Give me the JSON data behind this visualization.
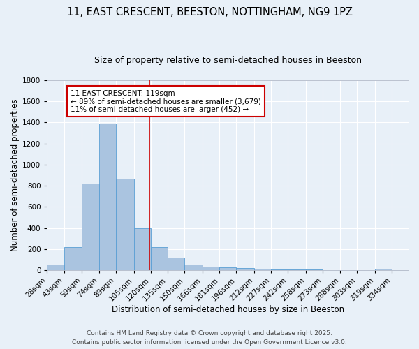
{
  "title_line1": "11, EAST CRESCENT, BEESTON, NOTTINGHAM, NG9 1PZ",
  "title_line2": "Size of property relative to semi-detached houses in Beeston",
  "xlabel": "Distribution of semi-detached houses by size in Beeston",
  "ylabel": "Number of semi-detached properties",
  "bin_labels": [
    "28sqm",
    "43sqm",
    "59sqm",
    "74sqm",
    "89sqm",
    "105sqm",
    "120sqm",
    "135sqm",
    "150sqm",
    "166sqm",
    "181sqm",
    "196sqm",
    "212sqm",
    "227sqm",
    "242sqm",
    "258sqm",
    "273sqm",
    "288sqm",
    "303sqm",
    "319sqm",
    "334sqm"
  ],
  "bin_edges": [
    28,
    43,
    59,
    74,
    89,
    105,
    120,
    135,
    150,
    166,
    181,
    196,
    212,
    227,
    242,
    258,
    273,
    288,
    303,
    319,
    334,
    349
  ],
  "bar_heights": [
    50,
    220,
    820,
    1390,
    870,
    400,
    220,
    120,
    50,
    35,
    25,
    18,
    12,
    8,
    5,
    3,
    2,
    1,
    0,
    10,
    0
  ],
  "bar_color": "#aac4e0",
  "bar_edgecolor": "#5a9fd4",
  "reference_line_x": 119,
  "reference_line_color": "#cc0000",
  "annotation_line1": "11 EAST CRESCENT: 119sqm",
  "annotation_line2": "← 89% of semi-detached houses are smaller (3,679)",
  "annotation_line3": "11% of semi-detached houses are larger (452) →",
  "annotation_box_edgecolor": "#cc0000",
  "ylim": [
    0,
    1800
  ],
  "yticks": [
    0,
    200,
    400,
    600,
    800,
    1000,
    1200,
    1400,
    1600,
    1800
  ],
  "bg_color": "#e8f0f8",
  "plot_bg_color": "#e8f0f8",
  "footer_line1": "Contains HM Land Registry data © Crown copyright and database right 2025.",
  "footer_line2": "Contains public sector information licensed under the Open Government Licence v3.0.",
  "title_fontsize": 10.5,
  "subtitle_fontsize": 9,
  "axis_label_fontsize": 8.5,
  "tick_fontsize": 7.5,
  "annotation_fontsize": 7.5,
  "footer_fontsize": 6.5
}
